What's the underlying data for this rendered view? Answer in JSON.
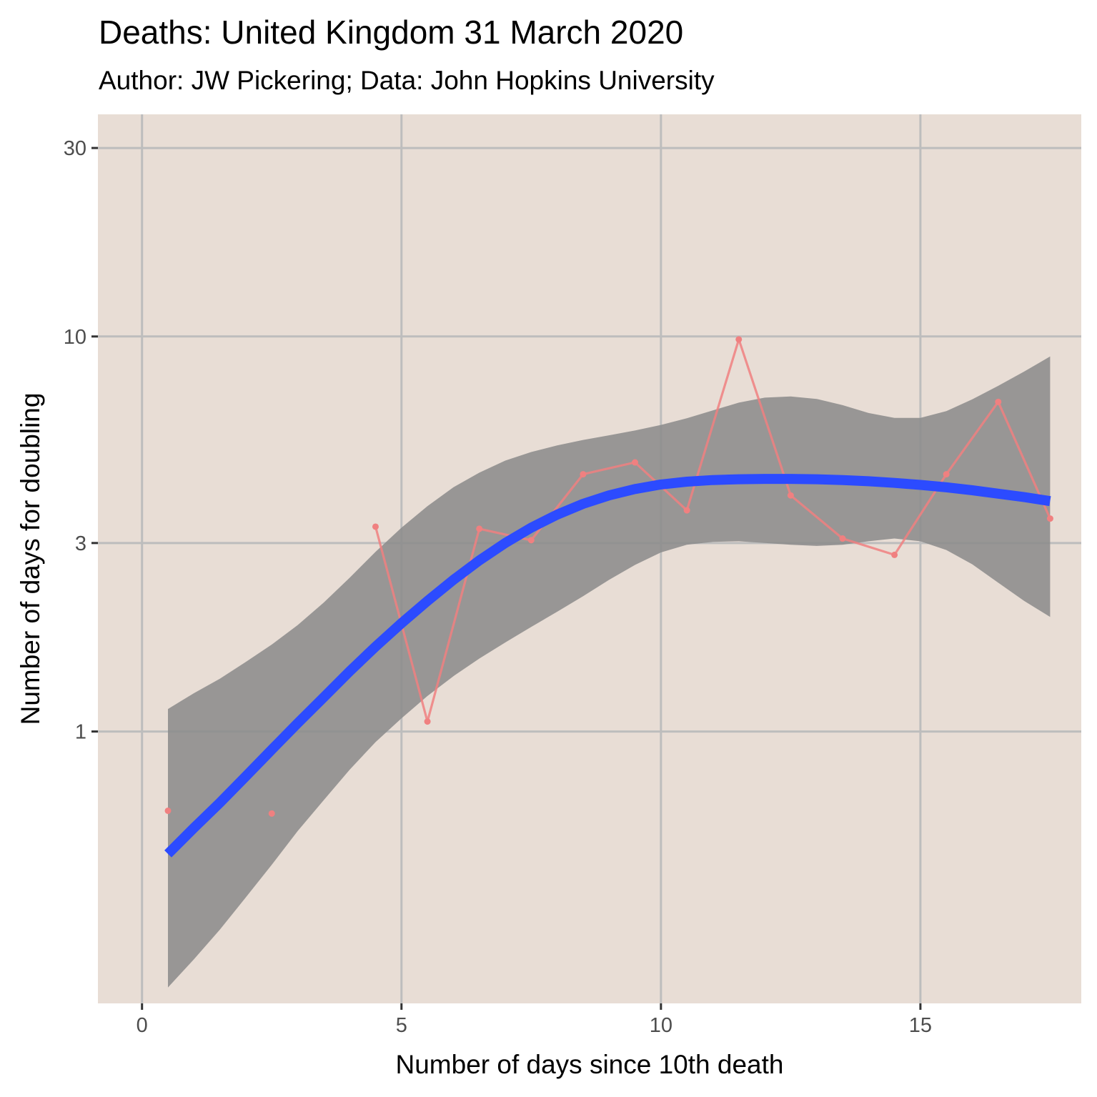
{
  "chart_data": {
    "type": "line",
    "title": "Deaths: United Kingdom 31 March 2020",
    "subtitle": "Author: JW Pickering; Data: John Hopkins University",
    "xlabel": "Number of days since 10th death",
    "ylabel": "Number of days for doubling",
    "y_scale": "log10",
    "xlim": [
      -0.85,
      18.1
    ],
    "ylim": [
      0.205,
      36.5
    ],
    "x_ticks": [
      0,
      5,
      10,
      15
    ],
    "x_tick_labels": [
      "0",
      "5",
      "10",
      "15"
    ],
    "y_ticks": [
      1,
      3,
      10,
      30
    ],
    "y_tick_labels": [
      "1",
      "3",
      "10",
      "30"
    ],
    "grid": true,
    "legend": "none",
    "colors": {
      "panel_background": "#e8ddd5",
      "grid": "#bdbdbd",
      "observed": "#f08080",
      "smooth": "#2c4bff",
      "confidence_band": "#8c8c8c"
    },
    "series": [
      {
        "kind": "observed",
        "x": [
          0.5,
          2.5,
          4.5,
          5.5,
          6.5,
          7.5,
          8.5,
          9.5,
          10.5,
          11.5,
          12.5,
          13.5,
          14.5,
          15.5,
          16.5,
          17.5
        ],
        "y": [
          0.63,
          0.62,
          3.3,
          1.06,
          3.26,
          3.05,
          4.48,
          4.8,
          3.63,
          9.83,
          3.96,
          3.08,
          2.8,
          4.48,
          6.83,
          3.46
        ],
        "line_segments": [
          [
            4.5,
            17.5
          ]
        ]
      },
      {
        "kind": "smooth",
        "x": [
          0.5,
          1.0,
          1.5,
          2.0,
          2.5,
          3.0,
          3.5,
          4.0,
          4.5,
          5.0,
          5.5,
          6.0,
          6.5,
          7.0,
          7.5,
          8.0,
          8.5,
          9.0,
          9.5,
          10.0,
          10.5,
          11.0,
          11.5,
          12.0,
          12.5,
          13.0,
          13.5,
          14.0,
          14.5,
          15.0,
          15.5,
          16.0,
          16.5,
          17.0,
          17.5
        ],
        "y": [
          0.49,
          0.57,
          0.66,
          0.77,
          0.9,
          1.05,
          1.22,
          1.42,
          1.64,
          1.88,
          2.14,
          2.42,
          2.71,
          3.0,
          3.28,
          3.54,
          3.77,
          3.96,
          4.11,
          4.22,
          4.29,
          4.33,
          4.35,
          4.36,
          4.36,
          4.35,
          4.33,
          4.3,
          4.26,
          4.21,
          4.15,
          4.08,
          4.0,
          3.92,
          3.83
        ],
        "band_lower": [
          0.225,
          0.265,
          0.315,
          0.38,
          0.46,
          0.56,
          0.67,
          0.8,
          0.94,
          1.08,
          1.23,
          1.38,
          1.53,
          1.68,
          1.84,
          2.01,
          2.2,
          2.42,
          2.64,
          2.84,
          2.97,
          3.02,
          3.03,
          3.0,
          2.97,
          2.95,
          2.97,
          3.03,
          3.08,
          3.03,
          2.88,
          2.65,
          2.38,
          2.14,
          1.95
        ],
        "band_upper": [
          1.14,
          1.25,
          1.36,
          1.5,
          1.66,
          1.86,
          2.12,
          2.45,
          2.85,
          3.28,
          3.72,
          4.15,
          4.52,
          4.85,
          5.1,
          5.3,
          5.47,
          5.62,
          5.78,
          5.97,
          6.21,
          6.5,
          6.8,
          7.0,
          7.05,
          6.95,
          6.7,
          6.4,
          6.22,
          6.22,
          6.47,
          6.93,
          7.5,
          8.15,
          8.9
        ]
      }
    ]
  }
}
